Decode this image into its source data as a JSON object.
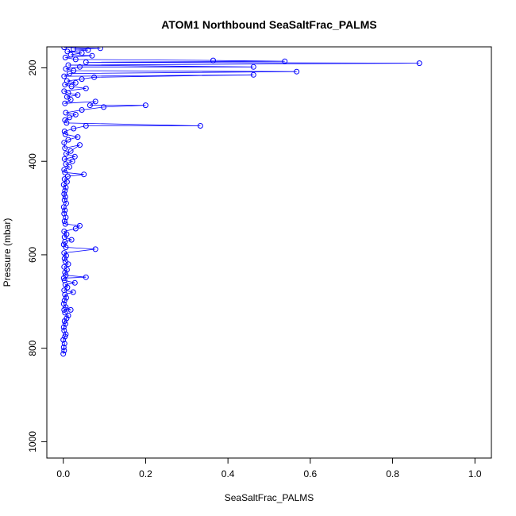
{
  "chart_data": {
    "type": "line",
    "title": "ATOM1 Northbound SeaSaltFrac_PALMS",
    "xlabel": "SeaSaltFrac_PALMS",
    "ylabel": "Pressure (mbar)",
    "xlim": [
      -0.04,
      1.04
    ],
    "ylim": [
      1035,
      155
    ],
    "y_inverted": true,
    "grid": false,
    "legend": "none",
    "x_ticks": [
      0.0,
      0.2,
      0.4,
      0.6,
      0.8,
      1.0
    ],
    "x_tick_labels": [
      "0.0",
      "0.2",
      "0.4",
      "0.6",
      "0.8",
      "1.0"
    ],
    "y_ticks": [
      200,
      400,
      600,
      800,
      1000
    ],
    "y_tick_labels": [
      "200",
      "400",
      "600",
      "800",
      "1000"
    ],
    "series_color": "#0000ff",
    "marker": "open-circle",
    "points": [
      [
        0.0,
        812
      ],
      [
        0.002,
        805
      ],
      [
        0.001,
        798
      ],
      [
        0.003,
        790
      ],
      [
        0.0,
        782
      ],
      [
        0.004,
        775
      ],
      [
        0.006,
        770
      ],
      [
        0.002,
        762
      ],
      [
        0.001,
        755
      ],
      [
        0.005,
        748
      ],
      [
        0.003,
        742
      ],
      [
        0.008,
        736
      ],
      [
        0.012,
        730
      ],
      [
        0.004,
        724
      ],
      [
        0.002,
        718
      ],
      [
        0.018,
        718
      ],
      [
        0.006,
        712
      ],
      [
        0.001,
        705
      ],
      [
        0.003,
        698
      ],
      [
        0.007,
        692
      ],
      [
        0.004,
        685
      ],
      [
        0.024,
        680
      ],
      [
        0.002,
        676
      ],
      [
        0.01,
        670
      ],
      [
        0.005,
        664
      ],
      [
        0.028,
        660
      ],
      [
        0.003,
        655
      ],
      [
        0.001,
        650
      ],
      [
        0.055,
        648
      ],
      [
        0.006,
        644
      ],
      [
        0.004,
        638
      ],
      [
        0.009,
        632
      ],
      [
        0.002,
        626
      ],
      [
        0.012,
        620
      ],
      [
        0.005,
        614
      ],
      [
        0.003,
        608
      ],
      [
        0.007,
        602
      ],
      [
        0.002,
        596
      ],
      [
        0.078,
        588
      ],
      [
        0.006,
        584
      ],
      [
        0.001,
        578
      ],
      [
        0.004,
        572
      ],
      [
        0.02,
        568
      ],
      [
        0.003,
        562
      ],
      [
        0.008,
        556
      ],
      [
        0.002,
        550
      ],
      [
        0.03,
        544
      ],
      [
        0.04,
        538
      ],
      [
        0.005,
        534
      ],
      [
        0.003,
        528
      ],
      [
        0.006,
        520
      ],
      [
        0.002,
        512
      ],
      [
        0.004,
        505
      ],
      [
        0.001,
        498
      ],
      [
        0.007,
        490
      ],
      [
        0.003,
        483
      ],
      [
        0.005,
        476
      ],
      [
        0.002,
        470
      ],
      [
        0.004,
        463
      ],
      [
        0.006,
        456
      ],
      [
        0.001,
        450
      ],
      [
        0.009,
        444
      ],
      [
        0.003,
        438
      ],
      [
        0.011,
        432
      ],
      [
        0.05,
        428
      ],
      [
        0.004,
        424
      ],
      [
        0.002,
        418
      ],
      [
        0.015,
        412
      ],
      [
        0.006,
        406
      ],
      [
        0.022,
        400
      ],
      [
        0.003,
        395
      ],
      [
        0.028,
        390
      ],
      [
        0.007,
        384
      ],
      [
        0.018,
        378
      ],
      [
        0.04,
        365
      ],
      [
        0.004,
        372
      ],
      [
        0.002,
        360
      ],
      [
        0.012,
        354
      ],
      [
        0.035,
        348
      ],
      [
        0.005,
        342
      ],
      [
        0.003,
        336
      ],
      [
        0.025,
        330
      ],
      [
        0.055,
        324
      ],
      [
        0.333,
        324
      ],
      [
        0.008,
        318
      ],
      [
        0.004,
        312
      ],
      [
        0.015,
        306
      ],
      [
        0.03,
        300
      ],
      [
        0.006,
        296
      ],
      [
        0.045,
        290
      ],
      [
        0.098,
        284
      ],
      [
        0.2,
        280
      ],
      [
        0.065,
        280
      ],
      [
        0.078,
        272
      ],
      [
        0.004,
        276
      ],
      [
        0.018,
        268
      ],
      [
        0.009,
        262
      ],
      [
        0.035,
        258
      ],
      [
        0.012,
        254
      ],
      [
        0.002,
        250
      ],
      [
        0.055,
        244
      ],
      [
        0.02,
        240
      ],
      [
        0.004,
        236
      ],
      [
        0.03,
        232
      ],
      [
        0.009,
        228
      ],
      [
        0.045,
        224
      ],
      [
        0.075,
        220
      ],
      [
        0.462,
        215
      ],
      [
        0.002,
        218
      ],
      [
        0.015,
        212
      ],
      [
        0.567,
        208
      ],
      [
        0.025,
        206
      ],
      [
        0.006,
        202
      ],
      [
        0.04,
        198
      ],
      [
        0.462,
        198
      ],
      [
        0.012,
        194
      ],
      [
        0.865,
        190
      ],
      [
        0.055,
        188
      ],
      [
        0.538,
        186
      ],
      [
        0.364,
        184
      ],
      [
        0.03,
        182
      ],
      [
        0.005,
        178
      ],
      [
        0.07,
        174
      ],
      [
        0.018,
        172
      ],
      [
        0.045,
        168
      ],
      [
        0.01,
        165
      ],
      [
        0.06,
        162
      ],
      [
        0.025,
        160
      ],
      [
        0.09,
        158
      ],
      [
        0.002,
        156
      ]
    ]
  }
}
